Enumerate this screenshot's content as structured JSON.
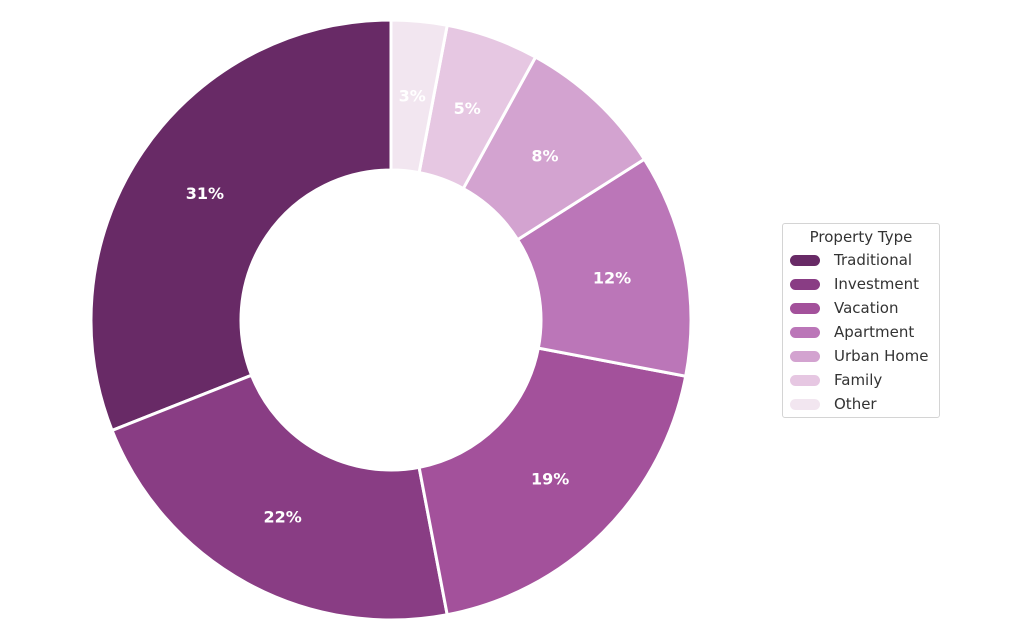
{
  "chart_data": {
    "type": "pie",
    "donut": true,
    "legend_title": "Property Type",
    "legend_position": "right",
    "slices": [
      {
        "label": "Traditional",
        "value": 31,
        "display": "31%",
        "color": "#682a66",
        "text_color": "#ffffff"
      },
      {
        "label": "Investment",
        "value": 22,
        "display": "22%",
        "color": "#893d84",
        "text_color": "#ffffff"
      },
      {
        "label": "Vacation",
        "value": 19,
        "display": "19%",
        "color": "#a3519b",
        "text_color": "#ffffff"
      },
      {
        "label": "Apartment",
        "value": 12,
        "display": "12%",
        "color": "#bb76b8",
        "text_color": "#ffffff"
      },
      {
        "label": "Urban Home",
        "value": 8,
        "display": "8%",
        "color": "#d3a3d0",
        "text_color": "#ffffff"
      },
      {
        "label": "Family",
        "value": 5,
        "display": "5%",
        "color": "#e6c7e2",
        "text_color": "#ffffff"
      },
      {
        "label": "Other",
        "value": 3,
        "display": "3%",
        "color": "#f2e6f0",
        "text_color": "#ffffff"
      }
    ]
  }
}
